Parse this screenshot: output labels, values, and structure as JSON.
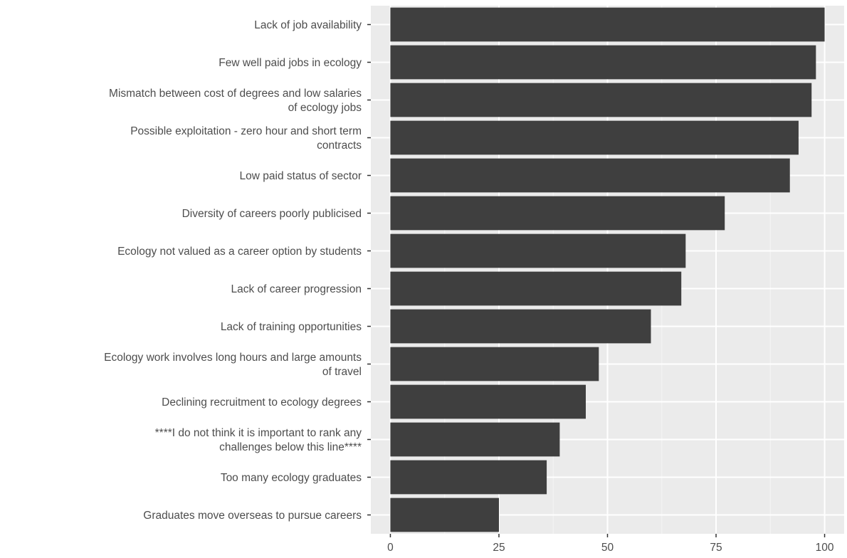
{
  "chart_data": {
    "type": "bar",
    "orientation": "horizontal",
    "categories": [
      [
        "Lack of job availability"
      ],
      [
        "Few well paid jobs in ecology"
      ],
      [
        "Mismatch between cost of degrees and low salaries",
        "of ecology jobs"
      ],
      [
        "Possible exploitation - zero hour and short term",
        "contracts"
      ],
      [
        "Low paid status of sector"
      ],
      [
        "Diversity of careers poorly publicised"
      ],
      [
        "Ecology not valued as a career option by students"
      ],
      [
        "Lack of career progression"
      ],
      [
        "Lack of training opportunities"
      ],
      [
        "Ecology work involves long hours and large amounts",
        "of travel"
      ],
      [
        "Declining recruitment to ecology degrees"
      ],
      [
        "****I do not think it is important to rank any",
        "challenges below this line****"
      ],
      [
        "Too many ecology graduates"
      ],
      [
        "Graduates move overseas to pursue careers"
      ]
    ],
    "values": [
      100,
      98,
      97,
      94,
      92,
      77,
      68,
      67,
      60,
      48,
      45,
      39,
      36,
      25
    ],
    "xlim": [
      -4.5,
      104.5
    ],
    "x_ticks": [
      0,
      25,
      50,
      75,
      100
    ],
    "x_tick_labels": [
      "0",
      "25",
      "50",
      "75",
      "100"
    ],
    "title": "",
    "xlabel": "",
    "ylabel": "",
    "grid": true,
    "colors": {
      "panel": "#ebebeb",
      "grid_major": "#ffffff",
      "grid_minor": "#f5f5f5",
      "bar": "#3f3f3f",
      "tick": "#333333",
      "text": "#4d4d4d"
    }
  }
}
